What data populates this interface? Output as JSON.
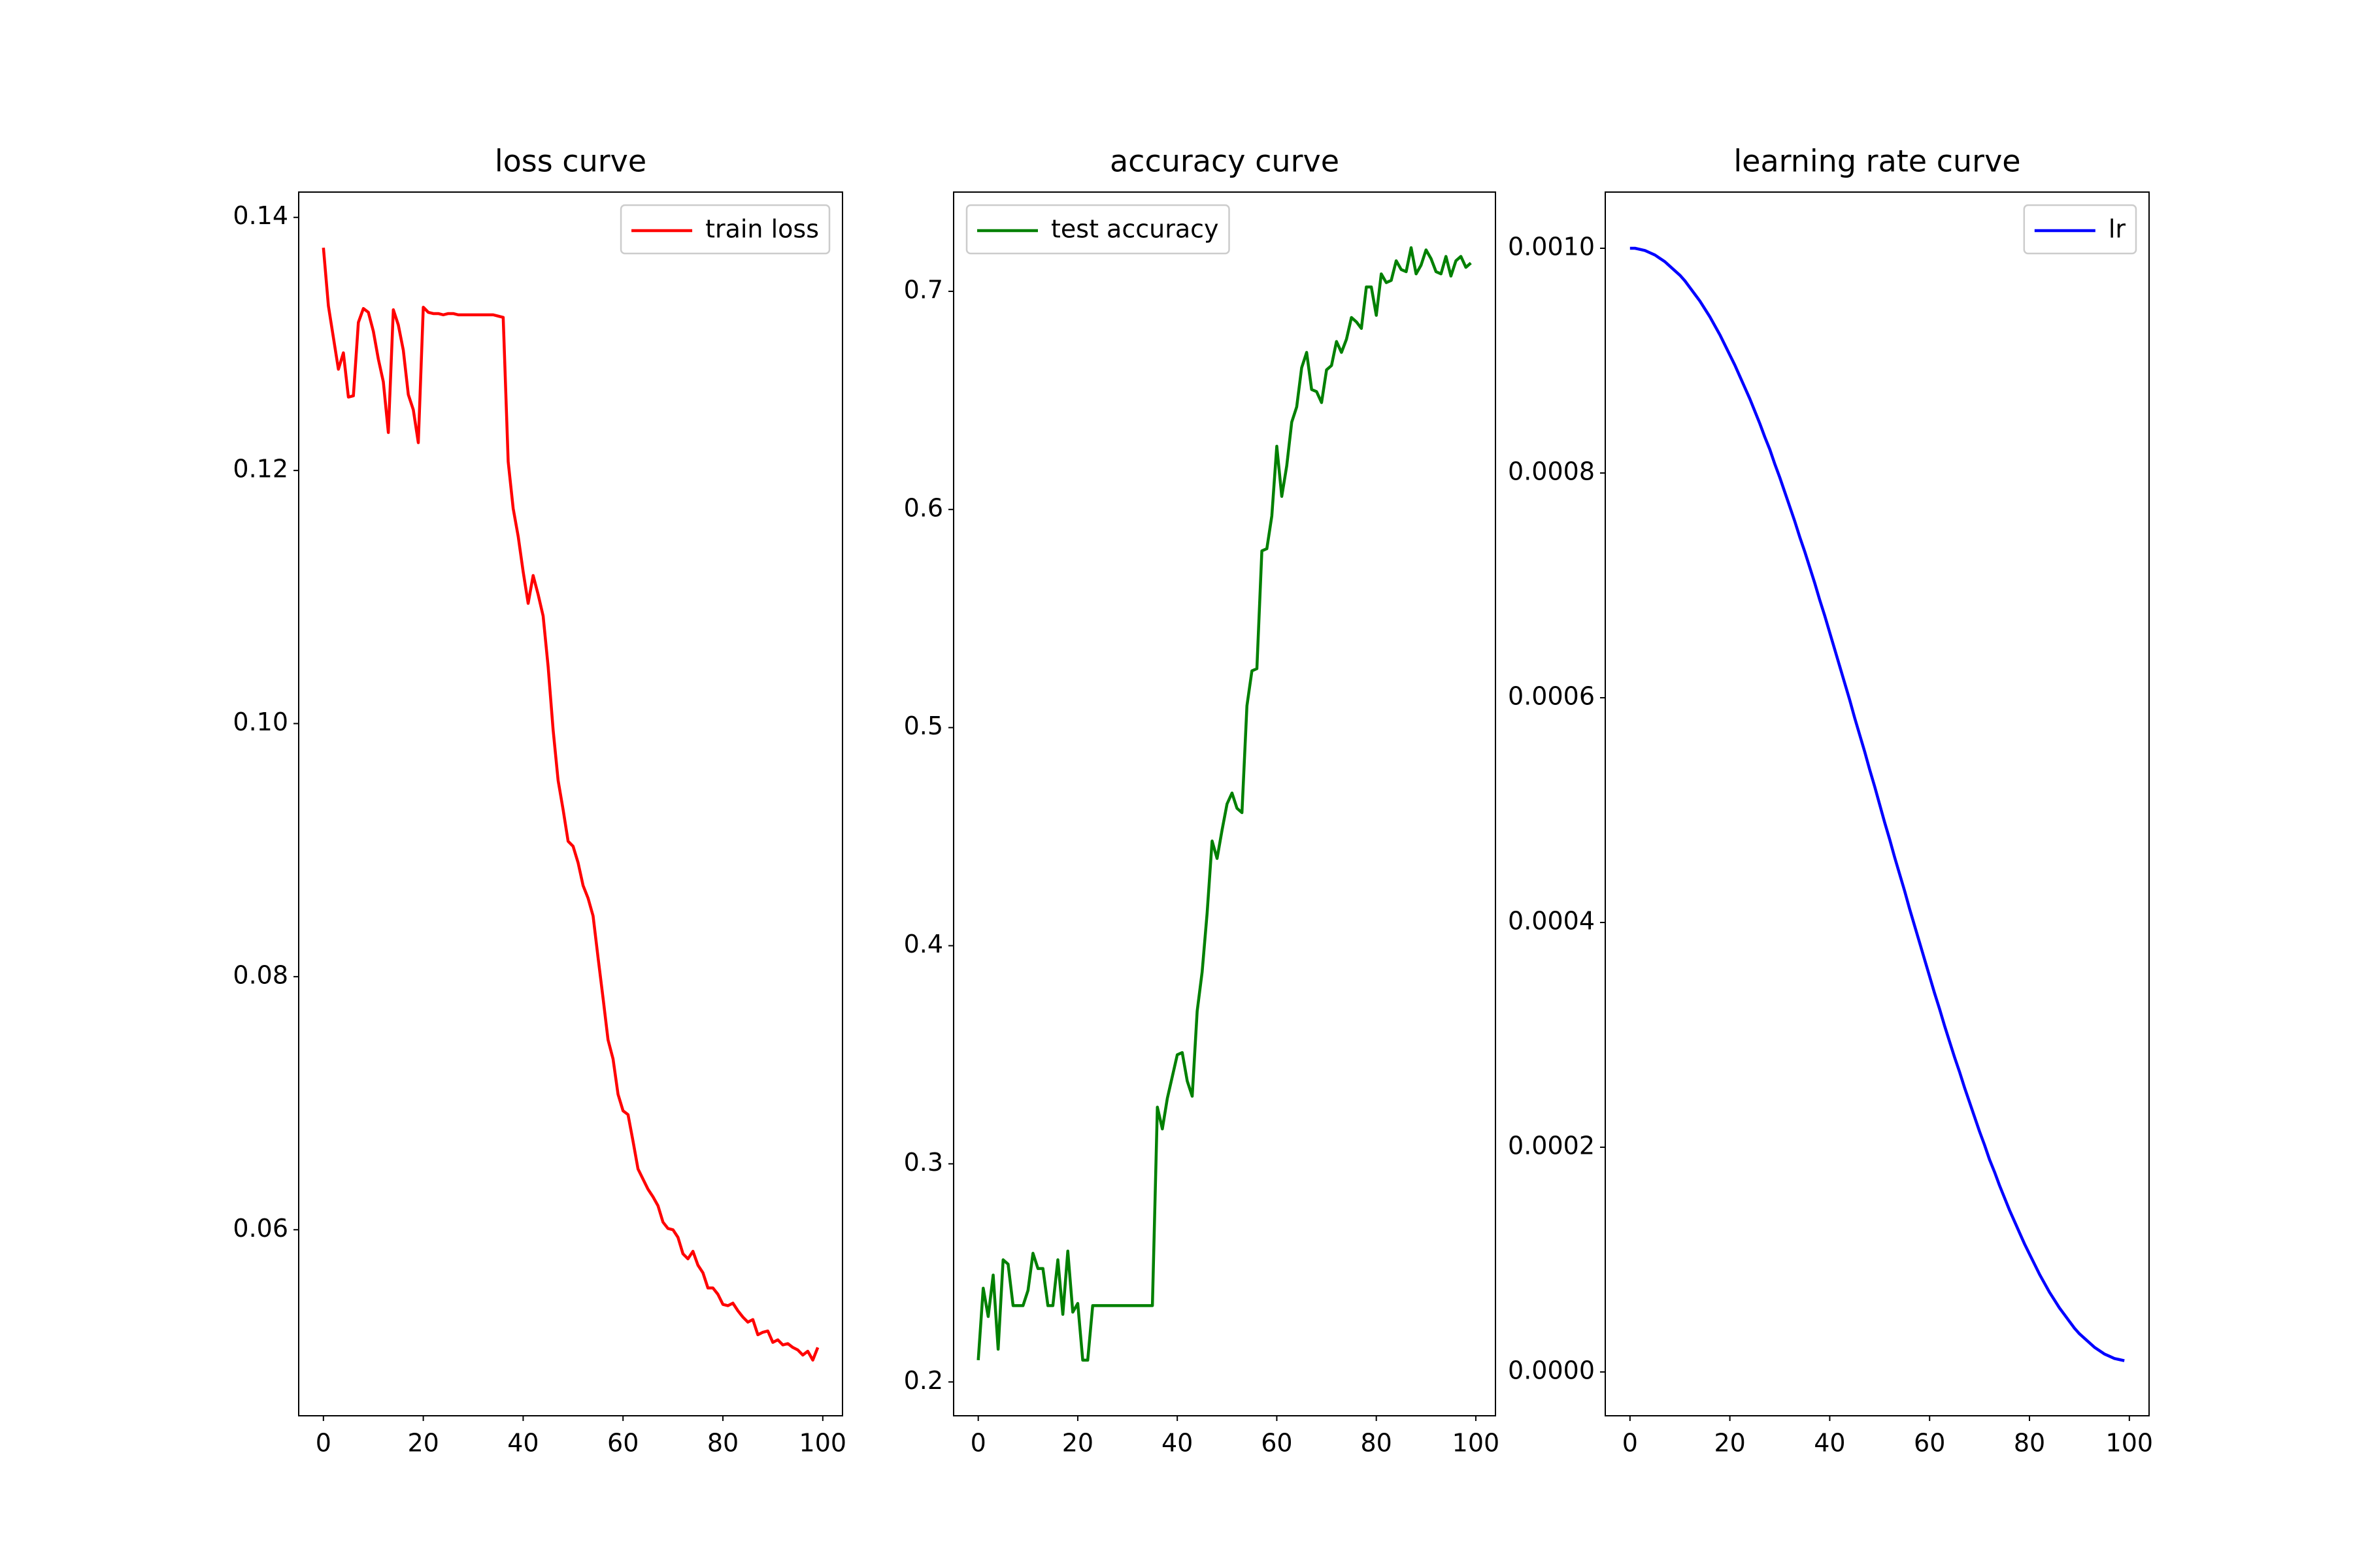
{
  "chart_data": [
    {
      "type": "line",
      "title": "loss curve",
      "legend": "upper right",
      "xlim": [
        -4.95,
        103.95
      ],
      "xticks": [
        0,
        20,
        40,
        60,
        80,
        100
      ],
      "ylim": [
        0.0453,
        0.142
      ],
      "yticks": [
        0.06,
        0.08,
        {
          "value": 0.1,
          "label": "0.10"
        },
        0.12,
        0.14
      ],
      "x": [
        0,
        1,
        2,
        3,
        4,
        5,
        6,
        7,
        8,
        9,
        10,
        11,
        12,
        13,
        14,
        15,
        16,
        17,
        18,
        19,
        20,
        21,
        22,
        23,
        24,
        25,
        26,
        27,
        28,
        29,
        30,
        31,
        32,
        33,
        34,
        35,
        36,
        37,
        38,
        39,
        40,
        41,
        42,
        43,
        44,
        45,
        46,
        47,
        48,
        49,
        50,
        51,
        52,
        53,
        54,
        55,
        56,
        57,
        58,
        59,
        60,
        61,
        62,
        63,
        64,
        65,
        66,
        67,
        68,
        69,
        70,
        71,
        72,
        73,
        74,
        75,
        76,
        77,
        78,
        79,
        80,
        81,
        82,
        83,
        84,
        85,
        86,
        87,
        88,
        89,
        90,
        91,
        92,
        93,
        94,
        95,
        96,
        97,
        98,
        99
      ],
      "series": [
        {
          "name": "train loss",
          "color": "#ff0000",
          "values": [
            0.1376,
            0.133,
            0.1305,
            0.128,
            0.1293,
            0.1258,
            0.1259,
            0.1317,
            0.1328,
            0.1325,
            0.131,
            0.1288,
            0.127,
            0.123,
            0.1327,
            0.1315,
            0.1295,
            0.126,
            0.1248,
            0.1222,
            0.1329,
            0.1325,
            0.1324,
            0.1324,
            0.1323,
            0.1324,
            0.1324,
            0.1323,
            0.1323,
            0.1323,
            0.1323,
            0.1323,
            0.1323,
            0.1323,
            0.1323,
            0.1322,
            0.1321,
            0.1207,
            0.117,
            0.1148,
            0.112,
            0.1095,
            0.1117,
            0.1102,
            0.1085,
            0.1045,
            0.0995,
            0.0955,
            0.0932,
            0.0907,
            0.0903,
            0.089,
            0.0872,
            0.0862,
            0.0848,
            0.0815,
            0.0783,
            0.075,
            0.0735,
            0.0707,
            0.0694,
            0.0691,
            0.067,
            0.0648,
            0.064,
            0.0632,
            0.0626,
            0.0619,
            0.0606,
            0.0601,
            0.06,
            0.0594,
            0.0581,
            0.0577,
            0.0583,
            0.0572,
            0.0566,
            0.0554,
            0.0554,
            0.0549,
            0.0541,
            0.054,
            0.0542,
            0.0536,
            0.0531,
            0.0527,
            0.0529,
            0.0517,
            0.0519,
            0.052,
            0.0511,
            0.0513,
            0.0509,
            0.051,
            0.0507,
            0.0505,
            0.0501,
            0.0504,
            0.0497,
            0.0507
          ]
        }
      ]
    },
    {
      "type": "line",
      "title": "accuracy curve",
      "legend": "upper left",
      "xlim": [
        -4.95,
        103.95
      ],
      "xticks": [
        0,
        20,
        40,
        60,
        80,
        100
      ],
      "ylim": [
        0.1845,
        0.7455
      ],
      "yticks": [
        0.2,
        0.3,
        0.4,
        0.5,
        0.6,
        0.7
      ],
      "x": [
        0,
        1,
        2,
        3,
        4,
        5,
        6,
        7,
        8,
        9,
        10,
        11,
        12,
        13,
        14,
        15,
        16,
        17,
        18,
        19,
        20,
        21,
        22,
        23,
        24,
        25,
        26,
        27,
        28,
        29,
        30,
        31,
        32,
        33,
        34,
        35,
        36,
        37,
        38,
        39,
        40,
        41,
        42,
        43,
        44,
        45,
        46,
        47,
        48,
        49,
        50,
        51,
        52,
        53,
        54,
        55,
        56,
        57,
        58,
        59,
        60,
        61,
        62,
        63,
        64,
        65,
        66,
        67,
        68,
        69,
        70,
        71,
        72,
        73,
        74,
        75,
        76,
        77,
        78,
        79,
        80,
        81,
        82,
        83,
        84,
        85,
        86,
        87,
        88,
        89,
        90,
        91,
        92,
        93,
        94,
        95,
        96,
        97,
        98,
        99
      ],
      "series": [
        {
          "name": "test accuracy",
          "color": "#008000",
          "values": [
            0.21,
            0.243,
            0.23,
            0.249,
            0.215,
            0.256,
            0.254,
            0.235,
            0.235,
            0.235,
            0.242,
            0.259,
            0.252,
            0.252,
            0.235,
            0.235,
            0.256,
            0.231,
            0.26,
            0.232,
            0.236,
            0.21,
            0.21,
            0.235,
            0.235,
            0.235,
            0.235,
            0.235,
            0.235,
            0.235,
            0.235,
            0.235,
            0.235,
            0.235,
            0.235,
            0.235,
            0.326,
            0.316,
            0.33,
            0.34,
            0.35,
            0.351,
            0.338,
            0.331,
            0.37,
            0.388,
            0.415,
            0.448,
            0.44,
            0.453,
            0.465,
            0.47,
            0.463,
            0.461,
            0.51,
            0.526,
            0.527,
            0.581,
            0.582,
            0.597,
            0.629,
            0.606,
            0.62,
            0.64,
            0.647,
            0.665,
            0.672,
            0.655,
            0.654,
            0.649,
            0.664,
            0.666,
            0.677,
            0.672,
            0.678,
            0.688,
            0.686,
            0.683,
            0.702,
            0.702,
            0.689,
            0.708,
            0.704,
            0.705,
            0.714,
            0.71,
            0.709,
            0.72,
            0.708,
            0.712,
            0.719,
            0.715,
            0.709,
            0.708,
            0.716,
            0.707,
            0.714,
            0.716,
            0.711,
            0.713
          ]
        }
      ]
    },
    {
      "type": "line",
      "title": "learning rate curve",
      "legend": "upper right",
      "xlim": [
        -4.95,
        103.95
      ],
      "xticks": [
        0,
        20,
        40,
        60,
        80,
        100
      ],
      "ylim": [
        -3.9e-05,
        0.00105
      ],
      "yticks": [
        {
          "value": 0,
          "label": "0.0000"
        },
        {
          "value": 0.0002,
          "label": "0.0002"
        },
        {
          "value": 0.0004,
          "label": "0.0004"
        },
        {
          "value": 0.0006,
          "label": "0.0006"
        },
        {
          "value": 0.0008,
          "label": "0.0008"
        },
        {
          "value": 0.001,
          "label": "0.0010"
        }
      ],
      "x": [
        0,
        1,
        2,
        3,
        4,
        5,
        6,
        7,
        8,
        9,
        10,
        11,
        12,
        13,
        14,
        15,
        16,
        17,
        18,
        19,
        20,
        21,
        22,
        23,
        24,
        25,
        26,
        27,
        28,
        29,
        30,
        31,
        32,
        33,
        34,
        35,
        36,
        37,
        38,
        39,
        40,
        41,
        42,
        43,
        44,
        45,
        46,
        47,
        48,
        49,
        50,
        51,
        52,
        53,
        54,
        55,
        56,
        57,
        58,
        59,
        60,
        61,
        62,
        63,
        64,
        65,
        66,
        67,
        68,
        69,
        70,
        71,
        72,
        73,
        74,
        75,
        76,
        77,
        78,
        79,
        80,
        81,
        82,
        83,
        84,
        85,
        86,
        87,
        88,
        89,
        90,
        91,
        92,
        93,
        94,
        95,
        96,
        97,
        98,
        99
      ],
      "series": [
        {
          "name": "lr",
          "color": "#0000ff",
          "values": [
            0.001,
            0.001,
            0.000999,
            0.000998,
            0.000996,
            0.000994,
            0.000991,
            0.000988,
            0.000984,
            0.00098,
            0.000976,
            0.000971,
            0.000965,
            0.000959,
            0.000953,
            0.000946,
            0.000939,
            0.000931,
            0.000923,
            0.000914,
            0.000905,
            0.000896,
            0.000886,
            0.000876,
            0.000866,
            0.000855,
            0.000844,
            0.000832,
            0.000821,
            0.000808,
            0.000796,
            0.000783,
            0.00077,
            0.000757,
            0.000743,
            0.00073,
            0.000716,
            0.000702,
            0.000687,
            0.000673,
            0.000658,
            0.000643,
            0.000628,
            0.000613,
            0.000598,
            0.000582,
            0.000567,
            0.000552,
            0.000536,
            0.000521,
            0.000505,
            0.000489,
            0.000474,
            0.000458,
            0.000443,
            0.000428,
            0.000412,
            0.000397,
            0.000382,
            0.000367,
            0.000352,
            0.000337,
            0.000323,
            0.000308,
            0.000294,
            0.00028,
            0.000267,
            0.000253,
            0.00024,
            0.000227,
            0.000214,
            0.000202,
            0.000189,
            0.000178,
            0.000166,
            0.000155,
            0.000144,
            0.000134,
            0.000124,
            0.000114,
            0.000105,
            9.6e-05,
            8.7e-05,
            7.9e-05,
            7.1e-05,
            6.4e-05,
            5.7e-05,
            5.1e-05,
            4.5e-05,
            3.9e-05,
            3.4e-05,
            3e-05,
            2.6e-05,
            2.2e-05,
            1.9e-05,
            1.6e-05,
            1.4e-05,
            1.2e-05,
            1.1e-05,
            1e-05
          ]
        }
      ]
    }
  ]
}
